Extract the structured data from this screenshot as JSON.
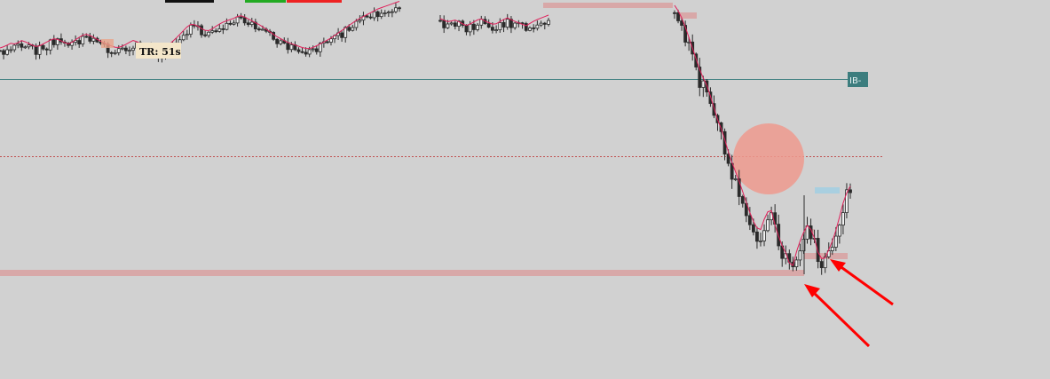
{
  "chart_data": {
    "type": "candlestick",
    "theme": {
      "background": "#d1d1d1",
      "candle_color": "#2a2a2a",
      "ma_color": "#e0205a",
      "zone_color": "#d8a8a8",
      "ib_line_color": "#3f7f80",
      "ib_label_bg": "#3c7d7e",
      "price_line_color": "#c05050",
      "circle_color": "#ee9a8e",
      "light_blue_zone": "#a9cfe0",
      "arrow_color": "#ff0000",
      "tag_bg": "#f4e6c9",
      "top_bar_colors": [
        "#111111",
        "#22aa22",
        "#ee2222"
      ]
    },
    "labels": {
      "timer_tag": "TR: 51s",
      "ib_label": "IB-"
    },
    "series": [
      {
        "name": "",
        "path": [
          40,
          42,
          45,
          44,
          48,
          46,
          43,
          41,
          44,
          47,
          50,
          49,
          46,
          44,
          48,
          52,
          55,
          53,
          50,
          47,
          44,
          42,
          40,
          42,
          45,
          48,
          46,
          43,
          41,
          38,
          36,
          40,
          45,
          50,
          56,
          62,
          66,
          64,
          60,
          58,
          61,
          65,
          68,
          70,
          72,
          75,
          73,
          70,
          67,
          64,
          60,
          56,
          52,
          49,
          46,
          44,
          42,
          40,
          39,
          41,
          44,
          47,
          50,
          54,
          58,
          62,
          66,
          70,
          73,
          76,
          79,
          82,
          84,
          86,
          88,
          90
        ]
      },
      {
        "name": "",
        "path": [
          80,
          78,
          76,
          79,
          77,
          74,
          72,
          75,
          78,
          80,
          77,
          75,
          73,
          76,
          79,
          81,
          78,
          76,
          74,
          72,
          75,
          78,
          80,
          82,
          84
        ]
      },
      {
        "name": "",
        "path": [
          88,
          85,
          80,
          74,
          68,
          62,
          58,
          52,
          45,
          40,
          33,
          27,
          22,
          16,
          10,
          5,
          2,
          8,
          12,
          4,
          -2,
          -6,
          -12,
          -4,
          2,
          6,
          3,
          -5,
          -8,
          -3,
          2,
          10,
          18,
          22
        ]
      }
    ]
  }
}
